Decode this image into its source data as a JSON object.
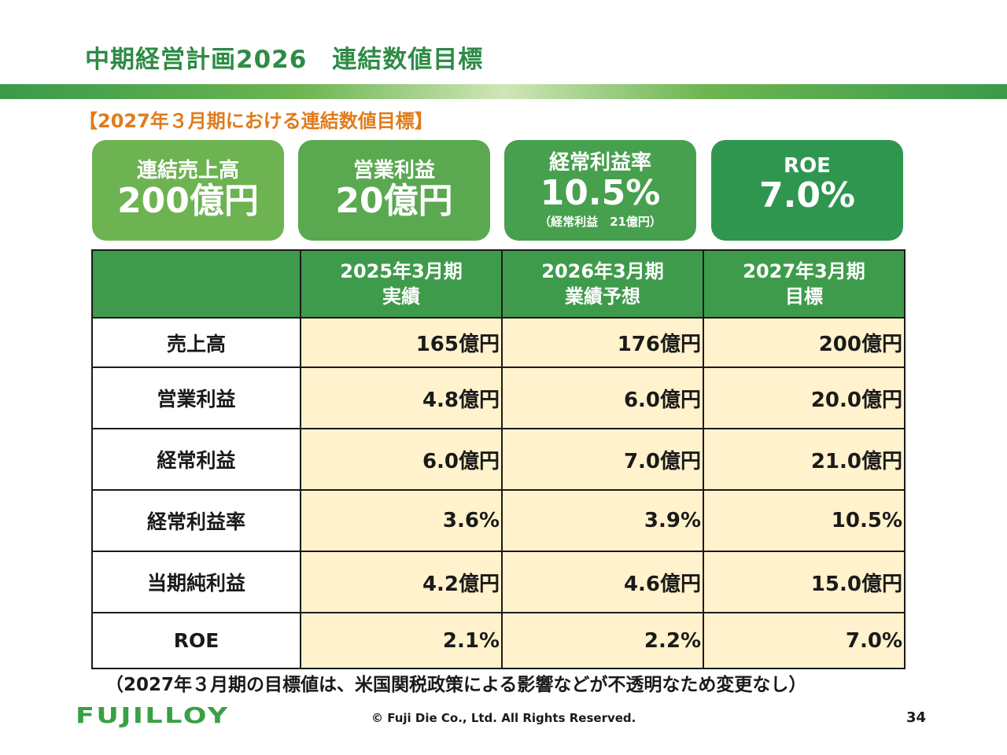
{
  "header": {
    "title": "中期経営計画2026　連結数値目標",
    "subtitle": "【2027年３月期における連結数値目標】"
  },
  "cards": [
    {
      "label": "連結売上高",
      "value": "200億円",
      "note": ""
    },
    {
      "label": "営業利益",
      "value": "20億円",
      "note": ""
    },
    {
      "label": "経常利益率",
      "value": "10.5%",
      "note": "（経常利益　21億円）"
    },
    {
      "label": "ROE",
      "value": "7.0%",
      "note": ""
    }
  ],
  "table": {
    "headers": [
      {
        "line1": "",
        "line2": ""
      },
      {
        "line1": "2025年3月期",
        "line2": "実績"
      },
      {
        "line1": "2026年3月期",
        "line2": "業績予想"
      },
      {
        "line1": "2027年3月期",
        "line2": "目標"
      }
    ],
    "rows": [
      {
        "label": "売上高",
        "values": [
          "165億円",
          "176億円",
          "200億円"
        ]
      },
      {
        "label": "営業利益",
        "values": [
          "4.8億円",
          "6.0億円",
          "20.0億円"
        ]
      },
      {
        "label": "経常利益",
        "values": [
          "6.0億円",
          "7.0億円",
          "21.0億円"
        ]
      },
      {
        "label": "経常利益率",
        "values": [
          "3.6%",
          "3.9%",
          "10.5%"
        ]
      },
      {
        "label": "当期純利益",
        "values": [
          "4.2億円",
          "4.6億円",
          "15.0億円"
        ]
      },
      {
        "label": "ROE",
        "values": [
          "2.1%",
          "2.2%",
          "7.0%"
        ]
      }
    ]
  },
  "footnote": "（2027年３月期の目標値は、米国関税政策による影響などが不透明なため変更なし）",
  "footer": {
    "logo_text": "FUJILLOY",
    "copyright": "© Fuji Die Co., Ltd. All Rights Reserved.",
    "page_number": "34"
  },
  "colors": {
    "title_green": "#2e8b45",
    "subtitle_orange": "#e07b1a",
    "table_header_green": "#3f9b4c",
    "cell_cream": "#fff2cc"
  }
}
